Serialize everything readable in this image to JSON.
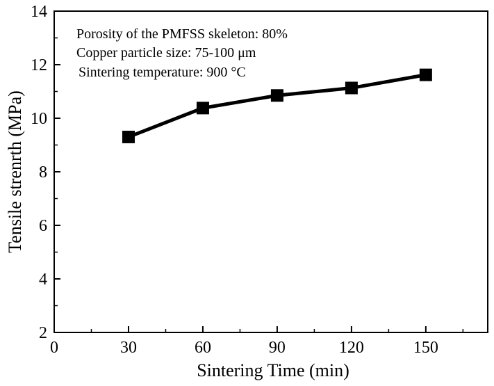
{
  "chart_data": {
    "type": "line",
    "x": [
      30,
      60,
      90,
      120,
      150
    ],
    "series": [
      {
        "values": [
          9.3,
          10.38,
          10.85,
          11.13,
          11.62
        ],
        "color": "#000000",
        "marker": "square"
      }
    ],
    "xlabel": "Sintering Time (min)",
    "ylabel": "Tensile strenrth (MPa)",
    "xlim": [
      0,
      175
    ],
    "ylim": [
      2,
      14
    ],
    "xticks": [
      0,
      30,
      60,
      90,
      120,
      150
    ],
    "yticks": [
      2,
      4,
      6,
      8,
      10,
      12,
      14
    ],
    "grid": false,
    "annotations": [
      "Porosity of the PMFSS skeleton: 80%",
      "Copper particle size: 75-100 μm",
      "Sintering temperature: 900 °C"
    ]
  }
}
